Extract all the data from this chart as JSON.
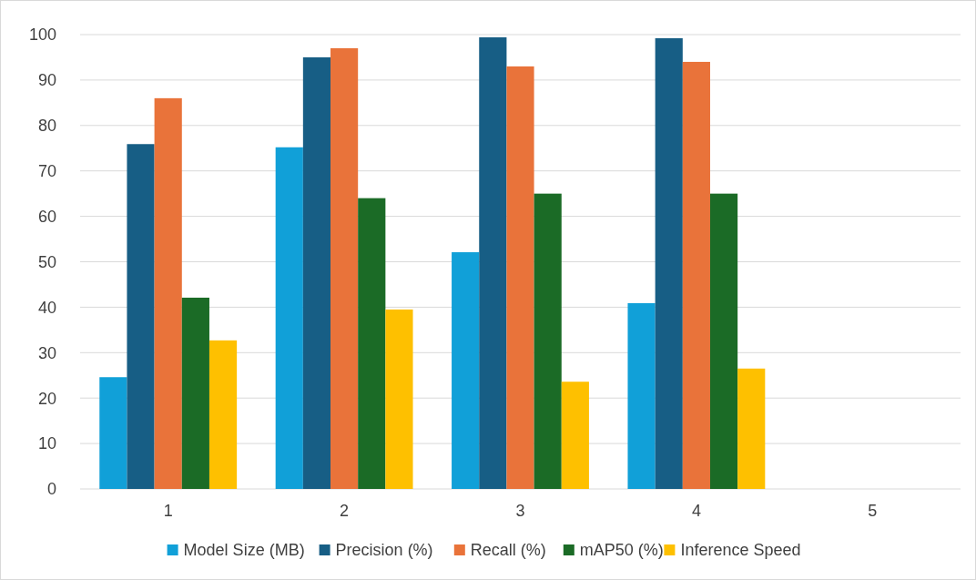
{
  "chart_data": {
    "type": "bar",
    "categories": [
      "1",
      "2",
      "3",
      "4",
      "5"
    ],
    "series": [
      {
        "name": "Model Size (MB)",
        "color": "#11a0d8",
        "values": [
          24.6,
          75.2,
          52.1,
          40.9,
          null
        ]
      },
      {
        "name": "Precision (%)",
        "color": "#175e85",
        "values": [
          75.9,
          95,
          99.4,
          99.2,
          null
        ]
      },
      {
        "name": "Recall (%)",
        "color": "#e9733a",
        "values": [
          86,
          97,
          93,
          94,
          null
        ]
      },
      {
        "name": "mAP50 (%)",
        "color": "#1b6b26",
        "values": [
          42.1,
          64,
          65,
          65,
          null
        ]
      },
      {
        "name": "Inference Speed",
        "color": "#fec000",
        "values": [
          32.7,
          39.5,
          23.6,
          26.5,
          null
        ]
      }
    ],
    "ylim": [
      0,
      100
    ],
    "yticks": [
      0,
      10,
      20,
      30,
      40,
      50,
      60,
      70,
      80,
      90,
      100
    ],
    "grid": "y",
    "legend": "bottom"
  }
}
